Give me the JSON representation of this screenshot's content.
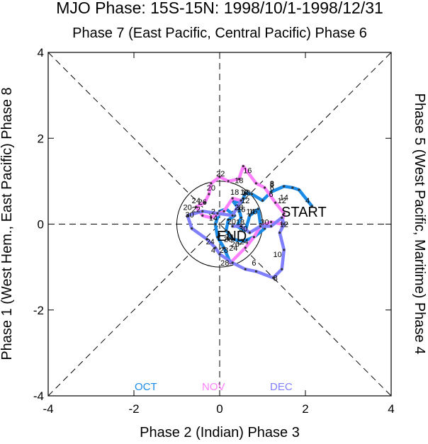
{
  "chart_data": {
    "type": "line",
    "title": "MJO Phase: 15S-15N: 1998/10/1-1998/12/31",
    "top_label": "Phase 7 (East Pacific, Central Pacific) Phase 6",
    "xlabel": "Phase 2 (Indian) Phase 3",
    "ylabel": "Phase 1 (West Hem., East Pacific) Phase 8",
    "right_label": "Phase 5 (West Pacific, Maritime) Phase 4",
    "xlim": [
      -4,
      4
    ],
    "ylim": [
      -4,
      4
    ],
    "xticks": [
      "-4",
      "-2",
      "0",
      "2",
      "4"
    ],
    "yticks": [
      "-4",
      "-2",
      "0",
      "2",
      "4"
    ],
    "grid": false,
    "unit_circle_radius": 1,
    "legend": "bottom-center",
    "start_label": "START",
    "end_label": "END",
    "series": [
      {
        "name": "OCT",
        "color": "#1a8be6",
        "points": [
          [
            2.15,
            0.42
          ],
          [
            1.85,
            0.8
          ],
          [
            1.7,
            0.85
          ],
          [
            1.5,
            0.88
          ],
          [
            1.2,
            0.75
          ],
          [
            1.0,
            0.55
          ],
          [
            0.75,
            0.7
          ],
          [
            0.6,
            0.72
          ],
          [
            0.55,
            0.6
          ],
          [
            0.5,
            0.5
          ],
          [
            0.3,
            0.55
          ],
          [
            0.45,
            0.35
          ],
          [
            0.5,
            0.15
          ],
          [
            0.4,
            -0.05
          ],
          [
            0.6,
            -0.15
          ],
          [
            0.7,
            0.2
          ],
          [
            0.9,
            0.35
          ],
          [
            0.95,
            0.0
          ],
          [
            1.05,
            -0.1
          ],
          [
            0.8,
            -0.3
          ],
          [
            0.55,
            -0.4
          ],
          [
            0.3,
            -0.35
          ],
          [
            0.15,
            -0.15
          ],
          [
            0.2,
            0.1
          ],
          [
            0.35,
            0.2
          ],
          [
            0.15,
            0.35
          ],
          [
            0.0,
            0.3
          ],
          [
            -0.1,
            0.0
          ],
          [
            -0.05,
            -0.3
          ],
          [
            0.1,
            -0.55
          ],
          [
            0.25,
            -0.9
          ]
        ],
        "day_labels": [
          [
            "4",
            2.05,
            0.55
          ],
          [
            "6",
            1.2,
            0.7
          ],
          [
            "8",
            1.22,
            0.93
          ],
          [
            "10",
            0.62,
            0.73
          ],
          [
            "12",
            0.6,
            0.55
          ],
          [
            "14",
            0.72,
            0.3
          ],
          [
            "16",
            0.78,
            0.3
          ],
          [
            "18",
            0.48,
            0.05
          ],
          [
            "20",
            0.28,
            0.07
          ],
          [
            "22",
            0.22,
            -0.3
          ],
          [
            "24",
            0.32,
            -0.55
          ],
          [
            "26",
            0.36,
            -0.46
          ],
          [
            "28",
            0.1,
            -0.6
          ],
          [
            "30",
            1.05,
            0.05
          ]
        ]
      },
      {
        "name": "NOV",
        "color": "#ff80ff",
        "points": [
          [
            0.25,
            -0.9
          ],
          [
            0.6,
            -0.55
          ],
          [
            0.8,
            -0.3
          ],
          [
            0.95,
            -0.05
          ],
          [
            1.2,
            0.05
          ],
          [
            1.45,
            0.0
          ],
          [
            1.5,
            0.25
          ],
          [
            1.3,
            0.5
          ],
          [
            1.05,
            0.85
          ],
          [
            0.85,
            0.95
          ],
          [
            0.55,
            1.35
          ],
          [
            0.45,
            1.05
          ],
          [
            0.2,
            1.0
          ],
          [
            0.0,
            1.1
          ],
          [
            -0.2,
            0.95
          ],
          [
            -0.25,
            0.7
          ],
          [
            -0.35,
            0.5
          ],
          [
            -0.55,
            0.4
          ],
          [
            -0.4,
            0.2
          ],
          [
            -0.2,
            0.15
          ],
          [
            0.1,
            0.3
          ],
          [
            0.3,
            0.6
          ],
          [
            0.5,
            0.55
          ]
        ],
        "day_labels": [
          [
            "2",
            0.52,
            -0.4
          ],
          [
            "4",
            0.62,
            -0.4
          ],
          [
            "6",
            1.22,
            0.85
          ],
          [
            "8",
            1.22,
            0.95
          ],
          [
            "10",
            0.58,
            0.75
          ],
          [
            "12",
            1.45,
            0.55
          ],
          [
            "14",
            1.5,
            0.63
          ],
          [
            "16",
            0.65,
            1.25
          ],
          [
            "18",
            0.45,
            1.02
          ],
          [
            "20",
            -0.2,
            0.85
          ],
          [
            "22",
            0.02,
            1.18
          ],
          [
            "24",
            -0.55,
            0.55
          ],
          [
            "26",
            -0.4,
            0.52
          ],
          [
            "28",
            0.45,
            0.4
          ],
          [
            "30",
            0.55,
            -0.1
          ]
        ]
      },
      {
        "name": "DEC",
        "color": "#8080ff",
        "points": [
          [
            0.5,
            0.55
          ],
          [
            0.3,
            0.2
          ],
          [
            -0.05,
            0.25
          ],
          [
            -0.4,
            0.3
          ],
          [
            -0.75,
            0.2
          ],
          [
            -0.65,
            -0.1
          ],
          [
            -0.3,
            -0.35
          ],
          [
            -0.1,
            -0.55
          ],
          [
            0.0,
            -0.7
          ],
          [
            0.3,
            -0.9
          ],
          [
            0.6,
            -1.05
          ],
          [
            0.85,
            -1.1
          ],
          [
            1.25,
            -1.25
          ],
          [
            1.45,
            -1.05
          ],
          [
            1.5,
            -0.6
          ],
          [
            1.4,
            -0.2
          ],
          [
            1.5,
            0.0
          ],
          [
            1.45,
            0.15
          ],
          [
            1.2,
            -0.05
          ],
          [
            0.95,
            -0.05
          ],
          [
            0.7,
            -0.2
          ],
          [
            0.5,
            -0.05
          ],
          [
            0.3,
            -0.05
          ]
        ],
        "day_labels": [
          [
            "2",
            -0.15,
            0.3
          ],
          [
            "4",
            -0.15,
            -0.6
          ],
          [
            "6",
            0.8,
            -0.9
          ],
          [
            "8",
            1.3,
            -1.25
          ],
          [
            "10",
            1.35,
            -0.7
          ],
          [
            "12",
            1.5,
            0.0
          ],
          [
            "14",
            -0.15,
            0.15
          ],
          [
            "16",
            0.5,
            0.35
          ],
          [
            "18",
            0.35,
            0.75
          ],
          [
            "20",
            -0.75,
            0.4
          ],
          [
            "22",
            -0.55,
            0.35
          ],
          [
            "24",
            -0.22,
            -0.4
          ],
          [
            "26",
            0.2,
            -0.35
          ],
          [
            "28",
            0.12,
            -0.9
          ],
          [
            "30",
            -0.7,
            0.22
          ]
        ]
      }
    ]
  }
}
